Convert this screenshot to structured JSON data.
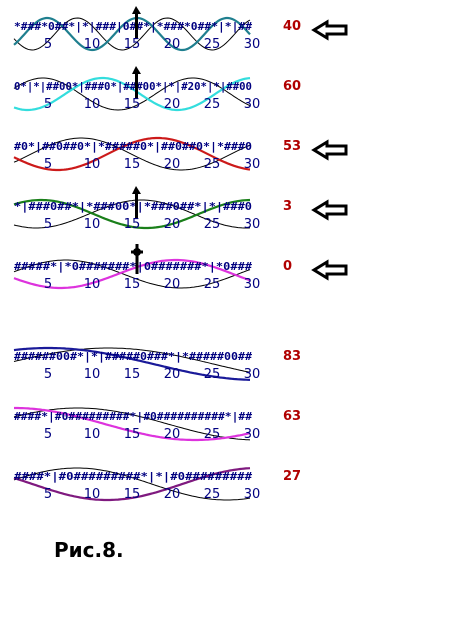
{
  "figure_caption": "Рис.8.",
  "colors": {
    "symbol_text": "#000080",
    "highlight": "#ff0000",
    "score": "#b00000",
    "arrow": "#000000",
    "reference_wave": "#000000"
  },
  "axis_ticks": [
    "5",
    "10",
    "15",
    "20",
    "25",
    "30"
  ],
  "rows": [
    {
      "label": "row-1",
      "sequence": "*###*0##*|*|###|0##*|*###*0##*|*|##",
      "score": "40",
      "wave_color": "#1f7f8f",
      "has_arrow": true,
      "marker": "up-arrow"
    },
    {
      "label": "row-2",
      "sequence": "0*|*|##00*|###0*|###00*|*|#20*|*|##00",
      "score": "60",
      "wave_color": "#33dddd",
      "has_arrow": false,
      "marker": "up-arrow"
    },
    {
      "label": "row-3",
      "sequence": "#0*|##0##0*|*#####0*|##0##0*|*###0",
      "score": "53",
      "wave_color": "#cc1a1a",
      "has_arrow": true,
      "marker": "none"
    },
    {
      "label": "row-4",
      "sequence": "*|###0##*|*###00*|*###0##*|*|###0",
      "score": "3",
      "wave_color": "#1a7f1a",
      "has_arrow": true,
      "marker": "up-arrow"
    },
    {
      "label": "row-5",
      "sequence": "#####*|*0#######*|0#######*|*0###",
      "score": "0",
      "wave_color": "#dd33dd",
      "has_arrow": true,
      "marker": "cross"
    },
    {
      "label": "row-6",
      "sequence": "######00#*|*|#####0###*|*#####00##",
      "score": "83",
      "wave_color": "#1a1a99",
      "has_arrow": false,
      "marker": "none"
    },
    {
      "label": "row-7",
      "sequence": "####*|#0#########*|#0##########*|##",
      "score": "63",
      "wave_color": "#dd33dd",
      "has_arrow": false,
      "marker": "none"
    },
    {
      "label": "row-8",
      "sequence": "####*|#0#########*|*|#0#########",
      "score": "27",
      "wave_color": "#7f1a7f",
      "has_arrow": false,
      "marker": "none"
    }
  ]
}
